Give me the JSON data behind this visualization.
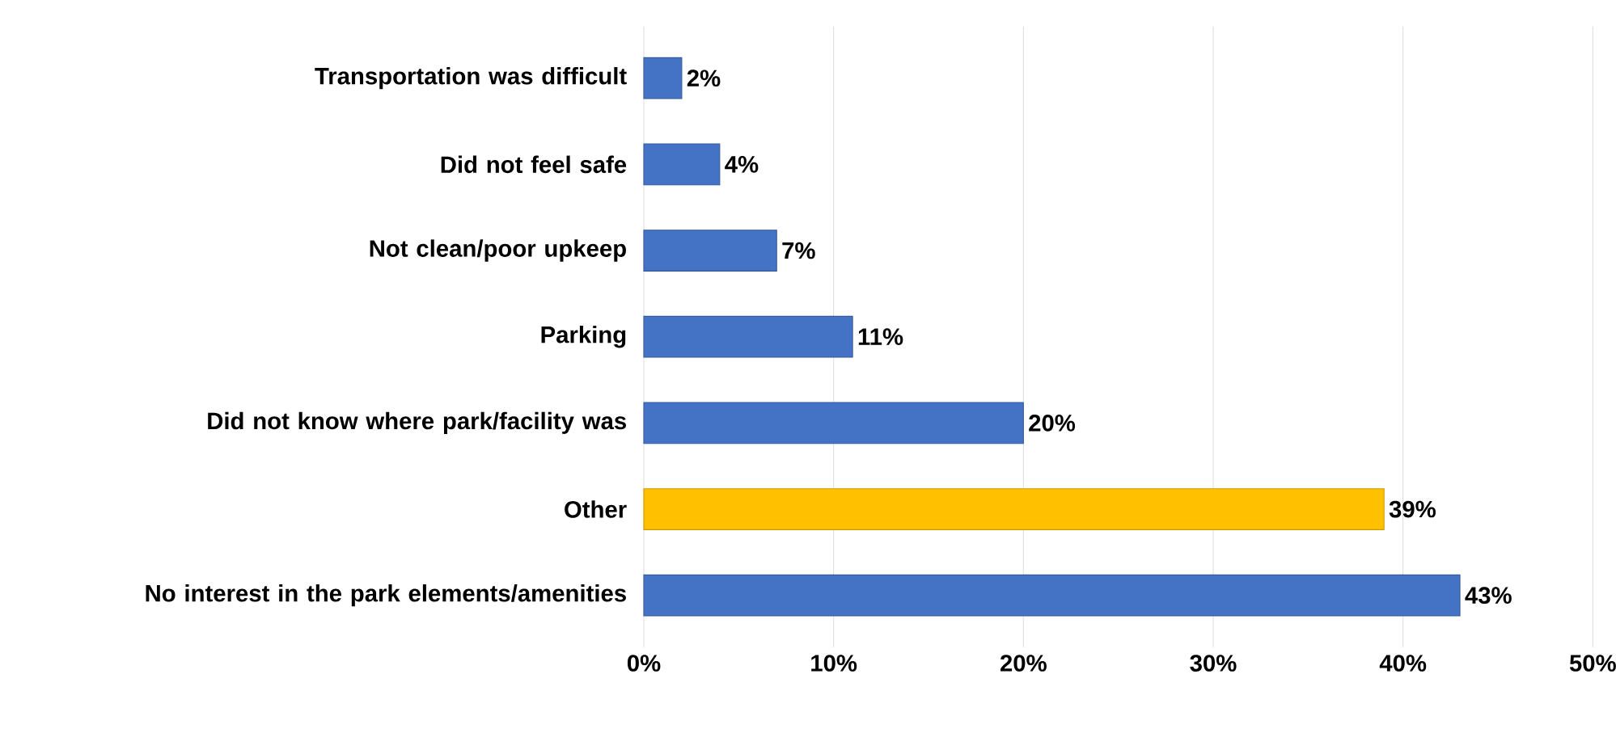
{
  "chart_data": {
    "type": "bar",
    "orientation": "horizontal",
    "categories": [
      "Transportation was difficult",
      "Did not feel safe",
      "Not clean/poor upkeep",
      "Parking",
      "Did not know where park/facility was",
      "Other",
      "No interest in the park elements/amenities"
    ],
    "values": [
      2,
      4,
      7,
      11,
      20,
      39,
      43
    ],
    "colors": [
      "#4472c4",
      "#4472c4",
      "#4472c4",
      "#4472c4",
      "#4472c4",
      "#ffc000",
      "#4472c4"
    ],
    "value_labels": [
      "2%",
      "4%",
      "7%",
      "11%",
      "20%",
      "39%",
      "43%"
    ],
    "xlim": [
      0,
      50
    ],
    "xticks": [
      {
        "value": 0,
        "label": "0%"
      },
      {
        "value": 10,
        "label": "10%"
      },
      {
        "value": 20,
        "label": "20%"
      },
      {
        "value": 30,
        "label": "30%"
      },
      {
        "value": 40,
        "label": "40%"
      },
      {
        "value": 50,
        "label": "50%"
      }
    ],
    "grid": "x"
  }
}
